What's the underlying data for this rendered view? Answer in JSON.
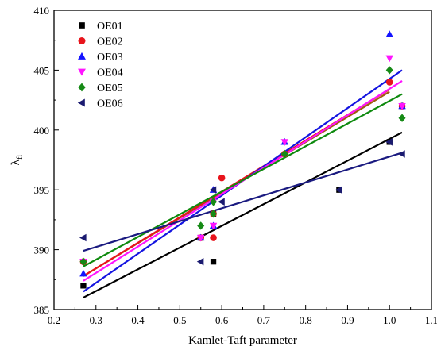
{
  "chart_data": {
    "type": "scatter",
    "xlabel": "Kamlet-Taft parameter",
    "ylabel_main": "λ",
    "ylabel_sub": "fl",
    "xlim": [
      0.2,
      1.1
    ],
    "ylim": [
      385,
      410
    ],
    "xticks": [
      0.2,
      0.3,
      0.4,
      0.5,
      0.6,
      0.7,
      0.8,
      0.9,
      1.0,
      1.1
    ],
    "xtick_labels": [
      "0.2",
      "0.3",
      "0.4",
      "0.5",
      "0.6",
      "0.7",
      "0.8",
      "0.9",
      "1.0",
      "1.1"
    ],
    "yticks": [
      385,
      390,
      395,
      400,
      405,
      410
    ],
    "ytick_labels": [
      "385",
      "390",
      "395",
      "400",
      "405",
      "410"
    ],
    "grid": false,
    "legend_position": "top-left",
    "series": [
      {
        "name": "OE01",
        "marker": "square",
        "color": "#000000",
        "line_color": "#000000",
        "points": [
          [
            0.27,
            387
          ],
          [
            0.55,
            391
          ],
          [
            0.58,
            389
          ],
          [
            0.58,
            393
          ],
          [
            0.88,
            395
          ],
          [
            1.0,
            399
          ],
          [
            1.03,
            402
          ]
        ],
        "fit": [
          [
            0.27,
            386.0
          ],
          [
            1.03,
            399.8
          ]
        ]
      },
      {
        "name": "OE02",
        "marker": "circle",
        "color": "#e8141c",
        "line_color": "#e8141c",
        "points": [
          [
            0.27,
            389
          ],
          [
            0.55,
            391
          ],
          [
            0.58,
            391
          ],
          [
            0.58,
            393
          ],
          [
            0.6,
            396
          ],
          [
            0.75,
            398
          ],
          [
            1.0,
            404
          ],
          [
            1.03,
            402
          ]
        ],
        "fit": [
          [
            0.27,
            387.8
          ],
          [
            1.0,
            403.4
          ]
        ]
      },
      {
        "name": "OE03",
        "marker": "triangle-up",
        "color": "#1414ff",
        "line_color": "#1414e0",
        "points": [
          [
            0.27,
            388
          ],
          [
            0.55,
            391
          ],
          [
            0.58,
            392
          ],
          [
            0.58,
            395
          ],
          [
            0.75,
            399
          ],
          [
            1.0,
            408
          ],
          [
            1.03,
            402
          ]
        ],
        "fit": [
          [
            0.27,
            386.5
          ],
          [
            1.03,
            405.0
          ]
        ]
      },
      {
        "name": "OE04",
        "marker": "triangle-down",
        "color": "#ff14ff",
        "line_color": "#ff14ff",
        "points": [
          [
            0.27,
            389
          ],
          [
            0.55,
            391
          ],
          [
            0.58,
            392
          ],
          [
            0.58,
            394
          ],
          [
            0.75,
            399
          ],
          [
            1.0,
            406
          ],
          [
            1.03,
            402
          ]
        ],
        "fit": [
          [
            0.27,
            387.4
          ],
          [
            1.03,
            404.1
          ]
        ]
      },
      {
        "name": "OE05",
        "marker": "diamond",
        "color": "#168a16",
        "line_color": "#0e8a0e",
        "points": [
          [
            0.27,
            389
          ],
          [
            0.55,
            392
          ],
          [
            0.58,
            393
          ],
          [
            0.58,
            394
          ],
          [
            0.75,
            398
          ],
          [
            1.0,
            405
          ],
          [
            1.03,
            401
          ]
        ],
        "fit": [
          [
            0.27,
            388.6
          ],
          [
            1.03,
            403.0
          ]
        ]
      },
      {
        "name": "OE06",
        "marker": "triangle-left",
        "color": "#1a1a70",
        "line_color": "#1a1a80",
        "points": [
          [
            0.27,
            391
          ],
          [
            0.55,
            389
          ],
          [
            0.58,
            395
          ],
          [
            0.6,
            394
          ],
          [
            0.88,
            395
          ],
          [
            1.0,
            399
          ],
          [
            1.03,
            398
          ]
        ],
        "fit": [
          [
            0.27,
            389.9
          ],
          [
            1.03,
            398.1
          ]
        ]
      }
    ],
    "extra_fit_lines": [
      {
        "color": "#a05a10",
        "fit": [
          [
            0.27,
            387.8
          ],
          [
            1.0,
            403.2
          ]
        ]
      }
    ]
  }
}
